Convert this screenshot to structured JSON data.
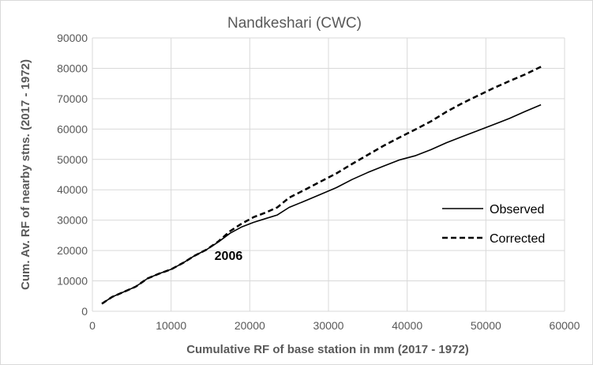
{
  "chart_data": {
    "type": "line",
    "title": "Nandkeshari (CWC)",
    "xlabel": "Cumulative RF of base station in mm (2017 - 1972)",
    "ylabel": "Cum. Av. RF of nearby stns. (2017 - 1972)",
    "xlim": [
      0,
      60000
    ],
    "ylim": [
      0,
      90000
    ],
    "xticks": [
      0,
      10000,
      20000,
      30000,
      40000,
      50000,
      60000
    ],
    "yticks": [
      0,
      10000,
      20000,
      30000,
      40000,
      50000,
      60000,
      70000,
      80000,
      90000
    ],
    "grid": true,
    "legend_position": "right",
    "annotation": {
      "text": "2006",
      "x": 16500,
      "y": 20000
    },
    "series": [
      {
        "name": "Observed",
        "style": "solid",
        "x": [
          1200,
          2500,
          4000,
          5500,
          7000,
          8500,
          10000,
          11500,
          13000,
          14500,
          16000,
          17500,
          19000,
          20500,
          22000,
          23500,
          25000,
          27000,
          29000,
          31000,
          33000,
          35000,
          37000,
          39000,
          41000,
          43000,
          45000,
          47000,
          49000,
          51000,
          53000,
          55000,
          57000
        ],
        "y": [
          2500,
          4700,
          6400,
          8100,
          10800,
          12400,
          13800,
          15900,
          18300,
          20300,
          22800,
          25700,
          27800,
          29300,
          30500,
          31700,
          34200,
          36300,
          38500,
          40700,
          43400,
          45700,
          47800,
          49800,
          51200,
          53200,
          55500,
          57500,
          59500,
          61500,
          63500,
          65800,
          68000
        ]
      },
      {
        "name": "Corrected",
        "style": "dashed",
        "x": [
          1200,
          2500,
          4000,
          5500,
          7000,
          8500,
          10000,
          11500,
          13000,
          14500,
          16000,
          17500,
          19000,
          20500,
          22000,
          23500,
          25000,
          27000,
          29000,
          31000,
          33000,
          35000,
          37000,
          39000,
          41000,
          43000,
          45000,
          47000,
          49000,
          51000,
          53000,
          55000,
          57000
        ],
        "y": [
          2500,
          4700,
          6400,
          8100,
          10800,
          12400,
          13800,
          15900,
          18300,
          20300,
          23000,
          26400,
          28900,
          31000,
          32500,
          34200,
          37400,
          40000,
          42700,
          45400,
          48500,
          51500,
          54500,
          57200,
          59800,
          62500,
          65700,
          68500,
          71000,
          73500,
          75800,
          78000,
          80500
        ]
      }
    ]
  }
}
